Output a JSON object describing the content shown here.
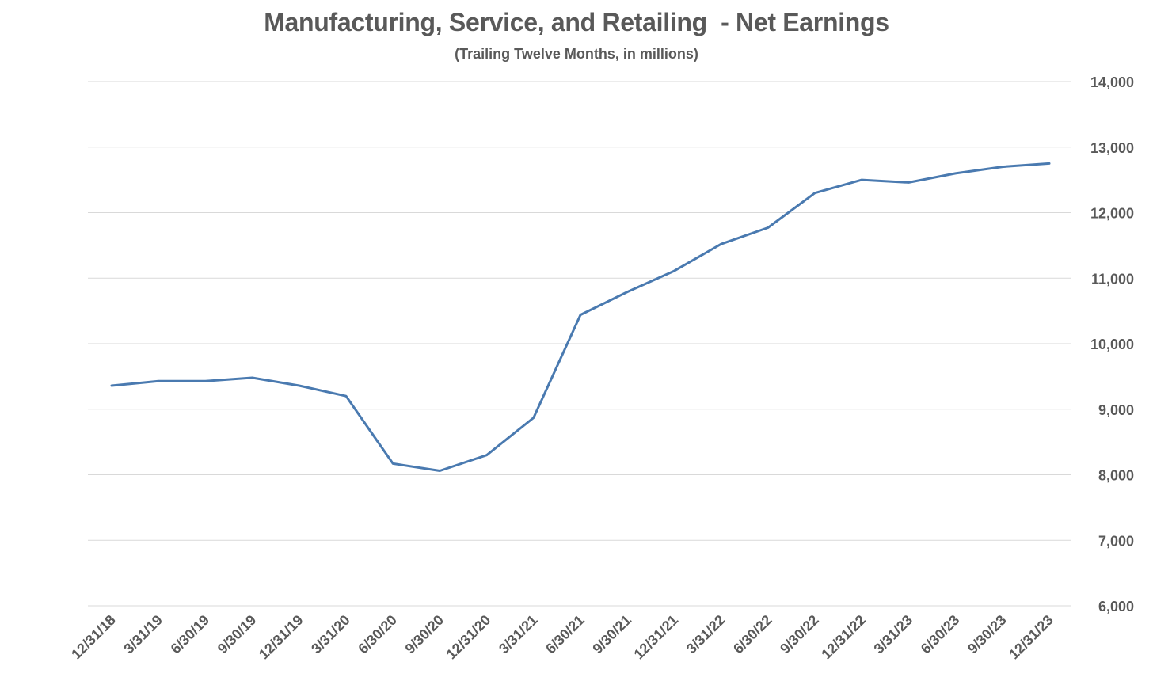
{
  "chart_data": {
    "type": "line",
    "title": "Manufacturing, Service, and Retailing  - Net Earnings",
    "subtitle": "(Trailing Twelve Months, in millions)",
    "categories": [
      "12/31/18",
      "3/31/19",
      "6/30/19",
      "9/30/19",
      "12/31/19",
      "3/31/20",
      "6/30/20",
      "9/30/20",
      "12/31/20",
      "3/31/21",
      "6/30/21",
      "9/30/21",
      "12/31/21",
      "3/31/22",
      "6/30/22",
      "9/30/22",
      "12/31/22",
      "3/31/23",
      "6/30/23",
      "9/30/23",
      "12/31/23"
    ],
    "series": [
      {
        "values": [
          9360,
          9430,
          9430,
          9480,
          9360,
          9200,
          8170,
          8060,
          8300,
          8870,
          10440,
          10790,
          11110,
          11520,
          11770,
          12300,
          12500,
          12460,
          12600,
          12700,
          12750
        ]
      }
    ],
    "ylim": [
      6000,
      14000
    ],
    "yticks": [
      6000,
      7000,
      8000,
      9000,
      10000,
      11000,
      12000,
      13000,
      14000
    ],
    "ytick_labels": [
      "6,000",
      "7,000",
      "8,000",
      "9,000",
      "10,000",
      "11,000",
      "12,000",
      "13,000",
      "14,000"
    ],
    "y_axis_side": "right",
    "grid": true,
    "line_color": "#4a7ab0",
    "grid_color": "#d9d9d9",
    "text_color": "#595959"
  }
}
